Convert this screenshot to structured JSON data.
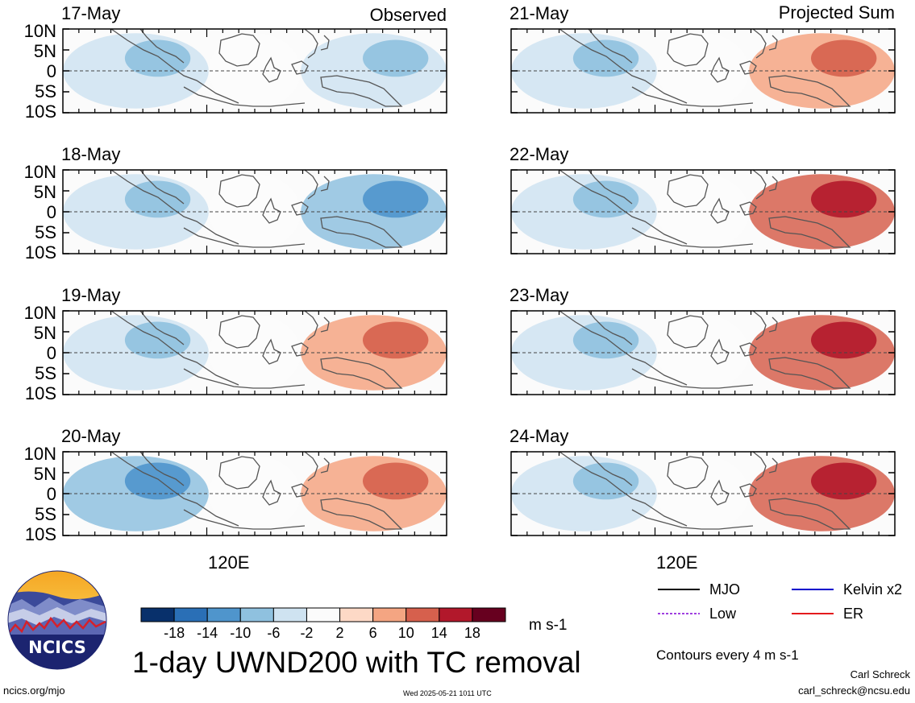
{
  "header": {
    "left_title": "Observed",
    "right_title": "Projected Sum"
  },
  "observed_dates": [
    "17-May",
    "18-May",
    "19-May",
    "20-May"
  ],
  "projected_dates": [
    "21-May",
    "22-May",
    "23-May",
    "24-May"
  ],
  "lat_labels": [
    "10N",
    "5N",
    "0",
    "5S",
    "10S"
  ],
  "lon_label": "120E",
  "colorbar": {
    "ticks": [
      "-18",
      "-14",
      "-10",
      "-6",
      "-2",
      "2",
      "6",
      "10",
      "14",
      "18"
    ],
    "colors": [
      "#08306b",
      "#2a6fb6",
      "#4f95cc",
      "#8fc1df",
      "#cfe3f1",
      "#fbfbfb",
      "#fdd9c6",
      "#f4a582",
      "#d6604d",
      "#b2182b",
      "#67001f"
    ],
    "units": "m s-1"
  },
  "main_title": "1-day UWND200 with TC removal",
  "legend": {
    "items": [
      {
        "label": "MJO",
        "color": "#000000",
        "style": "solid"
      },
      {
        "label": "Kelvin x2",
        "color": "#0000cc",
        "style": "solid"
      },
      {
        "label": "Low",
        "color": "#a040e0",
        "style": "dashed"
      },
      {
        "label": "ER",
        "color": "#e41a1c",
        "style": "solid"
      }
    ],
    "contour_note": "Contours every 4 m s-1"
  },
  "logo_text": "NCICS",
  "footer": {
    "url": "ncics.org/mjo",
    "timestamp": "Wed 2025-05-21 1011 UTC",
    "author": "Carl Schreck",
    "email": "carl_schreck@ncsu.edu"
  },
  "chart_data": [
    {
      "type": "heatmap",
      "title": "17-May",
      "variable": "UWND200 anomaly",
      "units": "m s-1",
      "ylim": [
        -10,
        10
      ],
      "ylabel_ticks": [
        "10N",
        "5N",
        "0",
        "5S",
        "10S"
      ],
      "xtick": "120E",
      "group": "Observed",
      "dominant": [
        {
          "region": "west",
          "value": -6
        },
        {
          "region": "central",
          "value": -2
        },
        {
          "region": "east",
          "value": -6
        }
      ]
    },
    {
      "type": "heatmap",
      "title": "18-May",
      "variable": "UWND200 anomaly",
      "units": "m s-1",
      "ylim": [
        -10,
        10
      ],
      "ylabel_ticks": [
        "10N",
        "5N",
        "0",
        "5S",
        "10S"
      ],
      "xtick": "120E",
      "group": "Observed",
      "dominant": [
        {
          "region": "west",
          "value": -6
        },
        {
          "region": "central",
          "value": -2
        },
        {
          "region": "east",
          "value": -10
        }
      ]
    },
    {
      "type": "heatmap",
      "title": "19-May",
      "variable": "UWND200 anomaly",
      "units": "m s-1",
      "ylim": [
        -10,
        10
      ],
      "ylabel_ticks": [
        "10N",
        "5N",
        "0",
        "5S",
        "10S"
      ],
      "xtick": "120E",
      "group": "Observed",
      "dominant": [
        {
          "region": "west",
          "value": -6
        },
        {
          "region": "central",
          "value": -2
        },
        {
          "region": "east",
          "value": 6
        }
      ]
    },
    {
      "type": "heatmap",
      "title": "20-May",
      "variable": "UWND200 anomaly",
      "units": "m s-1",
      "ylim": [
        -10,
        10
      ],
      "ylabel_ticks": [
        "10N",
        "5N",
        "0",
        "5S",
        "10S"
      ],
      "xtick": "120E",
      "group": "Observed",
      "dominant": [
        {
          "region": "west",
          "value": -10
        },
        {
          "region": "central",
          "value": -2
        },
        {
          "region": "east",
          "value": 6
        }
      ]
    },
    {
      "type": "heatmap",
      "title": "21-May",
      "variable": "UWND200 anomaly",
      "units": "m s-1",
      "ylim": [
        -10,
        10
      ],
      "ylabel_ticks": [
        "10N",
        "5N",
        "0",
        "5S",
        "10S"
      ],
      "xtick": "120E",
      "group": "Projected Sum",
      "dominant": [
        {
          "region": "west",
          "value": -6
        },
        {
          "region": "central",
          "value": -2
        },
        {
          "region": "east",
          "value": 6
        }
      ]
    },
    {
      "type": "heatmap",
      "title": "22-May",
      "variable": "UWND200 anomaly",
      "units": "m s-1",
      "ylim": [
        -10,
        10
      ],
      "ylabel_ticks": [
        "10N",
        "5N",
        "0",
        "5S",
        "10S"
      ],
      "xtick": "120E",
      "group": "Projected Sum",
      "dominant": [
        {
          "region": "west",
          "value": -6
        },
        {
          "region": "central",
          "value": -2
        },
        {
          "region": "east",
          "value": 10
        }
      ]
    },
    {
      "type": "heatmap",
      "title": "23-May",
      "variable": "UWND200 anomaly",
      "units": "m s-1",
      "ylim": [
        -10,
        10
      ],
      "ylabel_ticks": [
        "10N",
        "5N",
        "0",
        "5S",
        "10S"
      ],
      "xtick": "120E",
      "group": "Projected Sum",
      "dominant": [
        {
          "region": "west",
          "value": -6
        },
        {
          "region": "central",
          "value": -2
        },
        {
          "region": "east",
          "value": 10
        }
      ]
    },
    {
      "type": "heatmap",
      "title": "24-May",
      "variable": "UWND200 anomaly",
      "units": "m s-1",
      "ylim": [
        -10,
        10
      ],
      "ylabel_ticks": [
        "10N",
        "5N",
        "0",
        "5S",
        "10S"
      ],
      "xtick": "120E",
      "group": "Projected Sum",
      "dominant": [
        {
          "region": "west",
          "value": -6
        },
        {
          "region": "central",
          "value": -2
        },
        {
          "region": "east",
          "value": 10
        }
      ]
    }
  ]
}
